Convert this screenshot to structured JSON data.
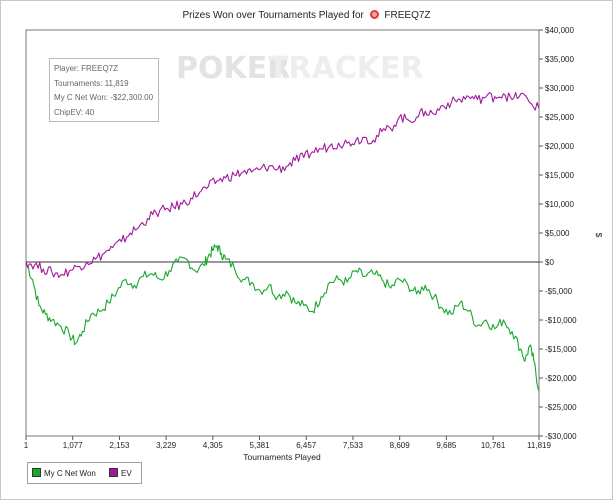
{
  "title": {
    "prefix": "Prizes Won over Tournaments Played for",
    "player": "FREEQ7Z"
  },
  "watermark": {
    "brand_left": "POKER",
    "brand_right": "TRACKER"
  },
  "info_box": {
    "lines": [
      "Player: FREEQ7Z",
      "Tournaments: 11,819",
      "My C Net Won: -$22,300.00",
      "ChipEV: 40"
    ]
  },
  "legend": {
    "items": [
      {
        "label": "My C Net Won",
        "color": "#16a82c"
      },
      {
        "label": "EV",
        "color": "#a0199c"
      }
    ]
  },
  "chart_data": {
    "type": "line",
    "title": "Prizes Won over Tournaments Played for FREEQ7Z",
    "xlabel": "Tournaments Played",
    "ylabel": "$",
    "xlim": [
      1,
      11819
    ],
    "ylim": [
      -30000,
      40000
    ],
    "x_ticks": [
      1,
      1077,
      2153,
      3229,
      4305,
      5381,
      6457,
      7533,
      8609,
      9685,
      10761,
      11819
    ],
    "x_tick_labels": [
      "1",
      "1,077",
      "2,153",
      "3,229",
      "4,305",
      "5,381",
      "6,457",
      "7,533",
      "8,609",
      "9,685",
      "10,761",
      "11,819"
    ],
    "y_ticks": [
      40000,
      35000,
      30000,
      25000,
      20000,
      15000,
      10000,
      5000,
      0,
      -5000,
      -10000,
      -15000,
      -20000,
      -25000,
      -30000
    ],
    "y_tick_labels": [
      "$40,000",
      "$35,000",
      "$30,000",
      "$25,000",
      "$20,000",
      "$15,000",
      "$10,000",
      "$5,000",
      "$0",
      "-$5,000",
      "-$10,000",
      "-$15,000",
      "-$20,000",
      "-$25,000",
      "-$30,000"
    ],
    "zero_line": true,
    "grid": false,
    "legend_position": "bottom-left",
    "series": [
      {
        "name": "My C Net Won",
        "color": "#16a82c",
        "x": [
          1,
          150,
          300,
          450,
          600,
          800,
          1000,
          1150,
          1300,
          1500,
          1700,
          1900,
          2100,
          2300,
          2500,
          2700,
          2900,
          3100,
          3300,
          3500,
          3700,
          3900,
          4100,
          4200,
          4300,
          4400,
          4500,
          4600,
          4800,
          5000,
          5200,
          5400,
          5600,
          5800,
          6000,
          6200,
          6400,
          6600,
          6800,
          7000,
          7200,
          7400,
          7600,
          7800,
          8000,
          8200,
          8400,
          8600,
          8800,
          9000,
          9200,
          9400,
          9600,
          9800,
          10000,
          10200,
          10400,
          10600,
          10800,
          11000,
          11200,
          11400,
          11500,
          11600,
          11700,
          11819
        ],
        "y": [
          0,
          -3000,
          -7500,
          -9000,
          -10000,
          -11000,
          -12500,
          -14000,
          -12000,
          -9000,
          -8500,
          -7000,
          -5000,
          -3000,
          -4000,
          -2500,
          -2000,
          -3000,
          -1500,
          0,
          500,
          -1500,
          -500,
          1000,
          2000,
          2800,
          1500,
          500,
          -1000,
          -3000,
          -3500,
          -5000,
          -4000,
          -6000,
          -5000,
          -7000,
          -7500,
          -8500,
          -6000,
          -3500,
          -3000,
          -3500,
          -1500,
          -2500,
          -2000,
          -3000,
          -4500,
          -3000,
          -4000,
          -5500,
          -4000,
          -6000,
          -8000,
          -9000,
          -7000,
          -8500,
          -11000,
          -10000,
          -11500,
          -10000,
          -12000,
          -15000,
          -17000,
          -14500,
          -17000,
          -22300
        ]
      },
      {
        "name": "EV",
        "color": "#a0199c",
        "x": [
          1,
          200,
          400,
          600,
          800,
          1000,
          1200,
          1400,
          1600,
          1800,
          2000,
          2200,
          2400,
          2600,
          2800,
          3000,
          3200,
          3400,
          3600,
          3800,
          4000,
          4200,
          4400,
          4600,
          4800,
          5000,
          5200,
          5400,
          5600,
          5800,
          6000,
          6200,
          6400,
          6600,
          6800,
          7000,
          7200,
          7400,
          7600,
          7800,
          8000,
          8200,
          8400,
          8600,
          8800,
          9000,
          9200,
          9400,
          9600,
          9800,
          10000,
          10200,
          10400,
          10600,
          10800,
          11000,
          11200,
          11400,
          11600,
          11819
        ],
        "y": [
          0,
          -500,
          -1200,
          -1800,
          -2200,
          -1500,
          -800,
          0,
          500,
          1500,
          2500,
          3500,
          5000,
          6000,
          7500,
          8500,
          9000,
          9500,
          10000,
          11000,
          12000,
          13000,
          14000,
          14500,
          15000,
          15500,
          15500,
          16000,
          16500,
          16000,
          16500,
          17500,
          18000,
          19000,
          19500,
          20000,
          20500,
          20500,
          21000,
          21500,
          21000,
          22500,
          23000,
          25000,
          24500,
          25000,
          26000,
          25500,
          27000,
          27500,
          28000,
          28500,
          28000,
          28500,
          28500,
          29000,
          28000,
          29000,
          27500,
          26500
        ]
      }
    ]
  }
}
